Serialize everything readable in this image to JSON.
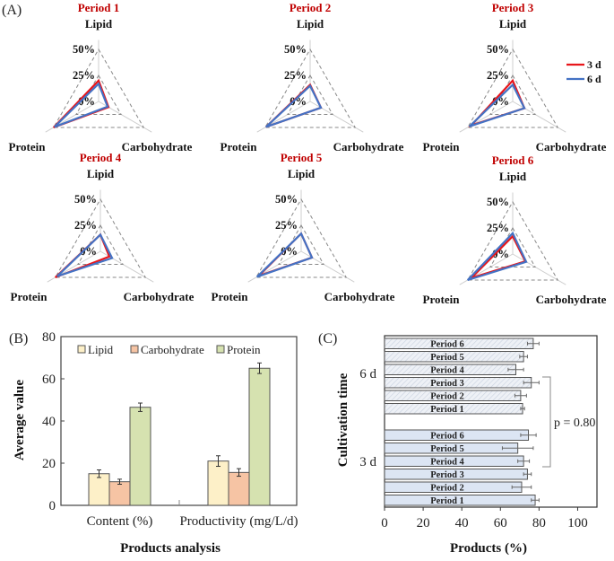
{
  "figure": {
    "panel_labels": [
      "(A)",
      "(B)",
      "(C)"
    ]
  },
  "chart_data": [
    {
      "type": "radar",
      "panel": "A",
      "axes": [
        "Lipid",
        "Carbohydrate",
        "Protein"
      ],
      "ring_labels": [
        "0%",
        "25%",
        "50%"
      ],
      "range": [
        0,
        50
      ],
      "legend": [
        {
          "name": "3 d",
          "color": "#e8161b"
        },
        {
          "name": "6 d",
          "color": "#4472c4"
        }
      ],
      "subplots": [
        {
          "title": "Period 1",
          "series": [
            {
              "name": "3 d",
              "values": [
                20,
                11,
                50
              ]
            },
            {
              "name": "6 d",
              "values": [
                17,
                10,
                49
              ]
            }
          ]
        },
        {
          "title": "Period 2",
          "series": [
            {
              "name": "3 d",
              "values": [
                16,
                12,
                49
              ]
            },
            {
              "name": "6 d",
              "values": [
                15,
                12,
                49
              ]
            }
          ]
        },
        {
          "title": "Period 3",
          "series": [
            {
              "name": "3 d",
              "values": [
                20,
                13,
                46
              ]
            },
            {
              "name": "6 d",
              "values": [
                16,
                13,
                48
              ]
            }
          ]
        },
        {
          "title": "Period 4",
          "series": [
            {
              "name": "3 d",
              "values": [
                16,
                10,
                50
              ]
            },
            {
              "name": "6 d",
              "values": [
                16,
                13,
                48
              ]
            }
          ]
        },
        {
          "title": "Period 5",
          "series": [
            {
              "name": "3 d",
              "values": [
                17,
                12,
                47
              ]
            },
            {
              "name": "6 d",
              "values": [
                17,
                12,
                49
              ]
            }
          ]
        },
        {
          "title": "Period 6",
          "series": [
            {
              "name": "3 d",
              "values": [
                17,
                14,
                46
              ]
            },
            {
              "name": "6 d",
              "values": [
                20,
                15,
                50
              ]
            }
          ]
        }
      ]
    },
    {
      "type": "bar",
      "panel": "B",
      "categories": [
        "Content (%)",
        "Productivity (mg/L/d)"
      ],
      "series": [
        {
          "name": "Lipid",
          "color": "#fdf0c8",
          "values": [
            15.0,
            21.0
          ],
          "errors": [
            1.8,
            2.5
          ]
        },
        {
          "name": "Carbohydrate",
          "color": "#f6c4a4",
          "values": [
            11.2,
            15.6
          ],
          "errors": [
            1.2,
            1.8
          ]
        },
        {
          "name": "Protein",
          "color": "#d6e2b0",
          "values": [
            46.5,
            65.0
          ],
          "errors": [
            2.0,
            2.5
          ]
        }
      ],
      "title": "",
      "xlabel": "Products analysis",
      "ylabel": "Average value",
      "ylim": [
        0,
        80
      ],
      "yticks": [
        0,
        20,
        40,
        60,
        80
      ],
      "legend_position": "top"
    },
    {
      "type": "bar",
      "orientation": "horizontal",
      "panel": "C",
      "groups": [
        {
          "name": "6 d",
          "fill": "#e6ecf4",
          "hatched": true,
          "bars": [
            {
              "label": "Period 6",
              "value": 77,
              "error": 3
            },
            {
              "label": "Period 5",
              "value": 72,
              "error": 2
            },
            {
              "label": "Period 4",
              "value": 68,
              "error": 4
            },
            {
              "label": "Period 3",
              "value": 76,
              "error": 4
            },
            {
              "label": "Period 2",
              "value": 70.5,
              "error": 3
            },
            {
              "label": "Period 1",
              "value": 71.5,
              "error": 1
            }
          ]
        },
        {
          "name": "3 d",
          "fill": "#dce5f3",
          "hatched": false,
          "bars": [
            {
              "label": "Period 6",
              "value": 74.5,
              "error": 4
            },
            {
              "label": "Period 5",
              "value": 69,
              "error": 8
            },
            {
              "label": "Period 4",
              "value": 72,
              "error": 3
            },
            {
              "label": "Period 3",
              "value": 74,
              "error": 2
            },
            {
              "label": "Period 2",
              "value": 71,
              "error": 5
            },
            {
              "label": "Period 1",
              "value": 78,
              "error": 2
            }
          ]
        }
      ],
      "annotation": "p = 0.80",
      "xlabel": "Products  (%)",
      "ylabel": "Cultivation time",
      "xlim": [
        0,
        110
      ],
      "xticks": [
        0,
        20,
        40,
        60,
        80,
        100
      ]
    }
  ]
}
